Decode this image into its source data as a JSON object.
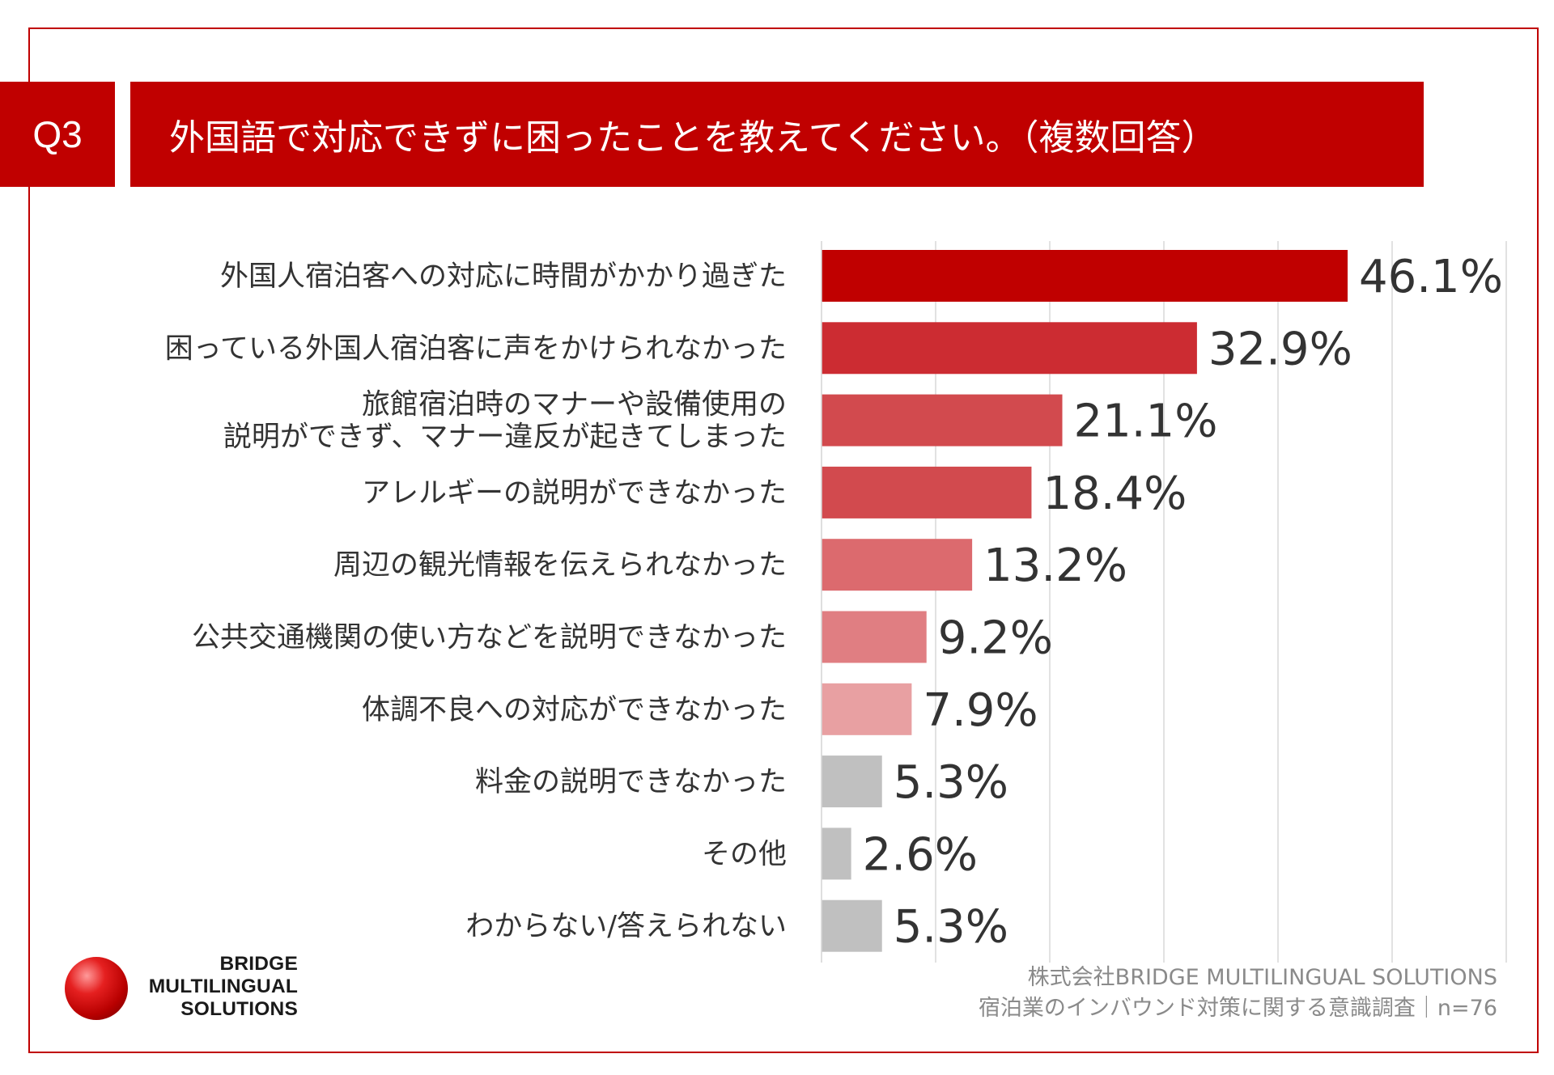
{
  "header": {
    "question_number": "Q3",
    "question_text": "外国語で対応できずに困ったことを教えてください。（複数回答）"
  },
  "chart_data": {
    "type": "bar",
    "orientation": "horizontal",
    "categories": [
      "外国人宿泊客への対応に時間がかかり過ぎた",
      "困っている外国人宿泊客に声をかけられなかった",
      "旅館宿泊時のマナーや設備使用の\n説明ができず、マナー違反が起きてしまった",
      "アレルギーの説明ができなかった",
      "周辺の観光情報を伝えられなかった",
      "公共交通機関の使い方などを説明できなかった",
      "体調不良への対応ができなかった",
      "料金の説明できなかった",
      "その他",
      "わからない/答えられない"
    ],
    "values": [
      46.1,
      32.9,
      21.1,
      18.4,
      13.2,
      9.2,
      7.9,
      5.3,
      2.6,
      5.3
    ],
    "value_labels": [
      "46.1%",
      "32.9%",
      "21.1%",
      "18.4%",
      "13.2%",
      "9.2%",
      "7.9%",
      "5.3%",
      "2.6%",
      "5.3%"
    ],
    "colors": [
      "#c00000",
      "#cc2c32",
      "#d24a4e",
      "#d24a4e",
      "#dc6a6e",
      "#e07e82",
      "#e8a0a2",
      "#c0c0c0",
      "#c0c0c0",
      "#c0c0c0"
    ],
    "xlim": [
      0,
      60
    ],
    "grid": true,
    "title": "外国語で対応できずに困ったことを教えてください。（複数回答）"
  },
  "footer": {
    "company": "株式会社BRIDGE MULTILINGUAL SOLUTIONS",
    "survey": "宿泊業のインバウンド対策に関する意識調査｜n=76"
  },
  "logo": {
    "line1": "BRIDGE",
    "line2": "MULTILINGUAL",
    "line3": "SOLUTIONS"
  }
}
